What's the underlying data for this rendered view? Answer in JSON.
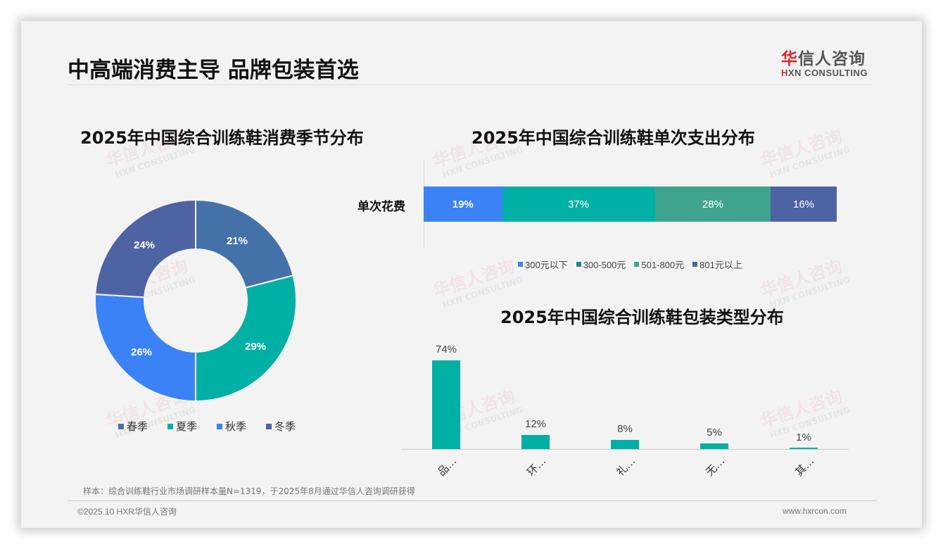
{
  "header": {
    "title": "中高端消费主导 品牌包装首选",
    "logo_cn_red": "华",
    "logo_cn_rest": "信人咨询",
    "logo_en_red": "H",
    "logo_en_rest": "XN CONSULTING"
  },
  "colors": {
    "spring": "#4472a8",
    "summer": "#00b0a5",
    "autumn": "#3b82f6",
    "winter": "#4d63a3",
    "under300": "#3b82f6",
    "r300_500": "#00b0a5",
    "r501_800": "#3fa48e",
    "over801": "#4d63a3",
    "column": "#00b0a5"
  },
  "chart_data": [
    {
      "type": "pie",
      "title": "2025年中国综合训练鞋消费季节分布",
      "categories": [
        "春季",
        "夏季",
        "秋季",
        "冬季"
      ],
      "values": [
        21,
        29,
        26,
        24
      ],
      "labels": [
        "21%",
        "29%",
        "26%",
        "24%"
      ],
      "donut": true,
      "legend_position": "bottom"
    },
    {
      "type": "bar",
      "stacked": true,
      "orientation": "horizontal",
      "title": "2025年中国综合训练鞋单次支出分布",
      "categories": [
        "单次花费"
      ],
      "series": [
        {
          "name": "300元以下",
          "values": [
            19
          ],
          "label": "19%"
        },
        {
          "name": "300-500元",
          "values": [
            37
          ],
          "label": "37%"
        },
        {
          "name": "501-800元",
          "values": [
            28
          ],
          "label": "28%"
        },
        {
          "name": "801元以上",
          "values": [
            16
          ],
          "label": "16%"
        }
      ],
      "legend_position": "bottom"
    },
    {
      "type": "bar",
      "title": "2025年中国综合训练鞋包装类型分布",
      "categories": [
        "品…",
        "环…",
        "礼…",
        "无…",
        "其…"
      ],
      "values": [
        74,
        12,
        8,
        5,
        1
      ],
      "labels": [
        "74%",
        "12%",
        "8%",
        "5%",
        "1%"
      ],
      "grid": false
    }
  ],
  "footer": {
    "note": "样本：综合训练鞋行业市场调研样本量N=1319，于2025年8月通过华信人咨询调研获得",
    "copyright": "©2025.10 HXR华信人咨询",
    "website": "www.hxrcon.com"
  },
  "watermark": {
    "cn": "华信人咨询",
    "en": "HXN CONSULTING"
  }
}
